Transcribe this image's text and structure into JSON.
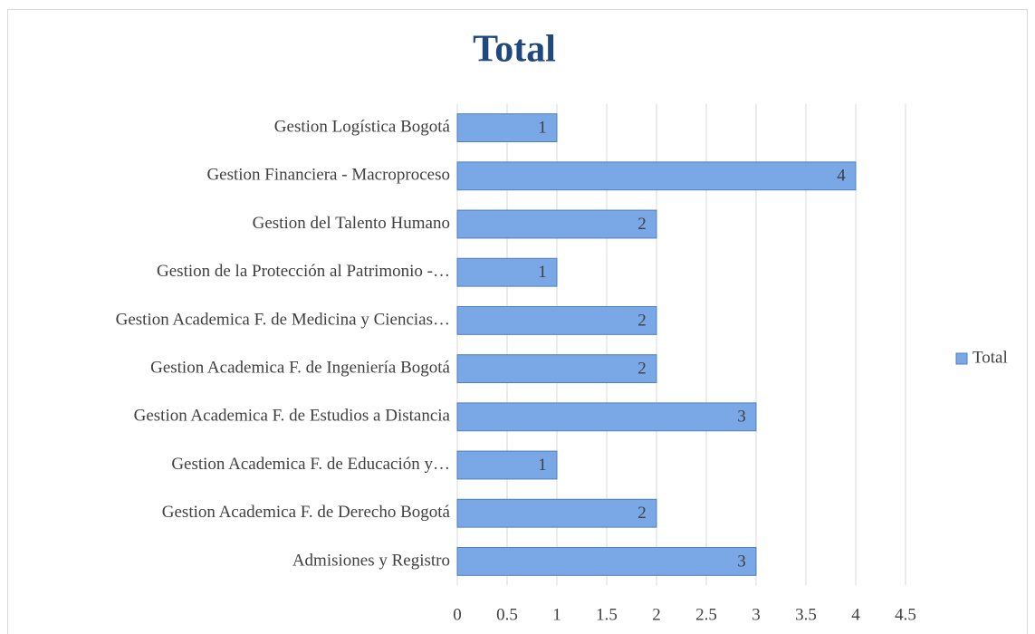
{
  "chart_data": {
    "type": "bar",
    "orientation": "horizontal",
    "title": "Total",
    "categories": [
      "Gestion Logística Bogotá",
      "Gestion Financiera - Macroproceso",
      "Gestion del Talento Humano",
      "Gestion de la Protección al Patrimonio -…",
      "Gestion Academica F. de Medicina y Ciencias…",
      "Gestion Academica F. de Ingeniería Bogotá",
      "Gestion Academica F. de Estudios a Distancia",
      "Gestion Academica F. de Educación y…",
      "Gestion Academica F. de Derecho Bogotá",
      "Admisiones y Registro"
    ],
    "series": [
      {
        "name": "Total",
        "color": "#7aa7e6",
        "values": [
          1,
          4,
          2,
          1,
          2,
          2,
          3,
          1,
          2,
          3
        ]
      }
    ],
    "xlim": [
      0,
      4.5
    ],
    "xticks": [
      0,
      0.5,
      1,
      1.5,
      2,
      2.5,
      3,
      3.5,
      4,
      4.5
    ],
    "grid": true,
    "legend": "right"
  }
}
